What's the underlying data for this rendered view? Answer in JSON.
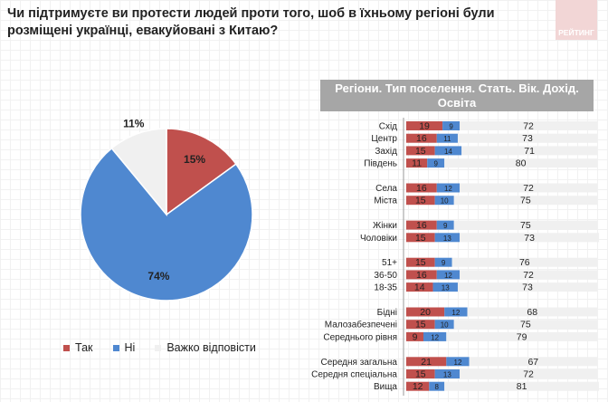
{
  "title": "Чи підтримуєте ви протести людей проти того, шоб в їхньому регіоні були розміщені українці, евакуйовані з Китаю?",
  "logo_text": "РЕЙТИНГ",
  "colors": {
    "yes": "#c0504d",
    "no": "#4f88d0",
    "hard": "#f0f0f0"
  },
  "chart_data": [
    {
      "type": "pie",
      "legend": [
        "Так",
        "Ні",
        "Важко відповісти"
      ],
      "values": [
        15,
        74,
        11
      ],
      "labels": [
        "15%",
        "74%",
        "11%"
      ],
      "legend_position": "bottom"
    },
    {
      "type": "bar",
      "stacked": true,
      "orientation": "horizontal",
      "title": "Регіони. Тип поселення. Стать. Вік. Дохід. Освіта",
      "series_names": [
        "Так",
        "Важко відповісти",
        "Ні"
      ],
      "groups": [
        [
          {
            "label": "Схід",
            "values": [
              19,
              9,
              72
            ]
          },
          {
            "label": "Центр",
            "values": [
              16,
              11,
              73
            ]
          },
          {
            "label": "Захід",
            "values": [
              15,
              14,
              71
            ]
          },
          {
            "label": "Південь",
            "values": [
              11,
              9,
              80
            ]
          }
        ],
        [
          {
            "label": "Села",
            "values": [
              16,
              12,
              72
            ]
          },
          {
            "label": "Міста",
            "values": [
              15,
              10,
              75
            ]
          }
        ],
        [
          {
            "label": "Жінки",
            "values": [
              16,
              9,
              75
            ]
          },
          {
            "label": "Чоловіки",
            "values": [
              15,
              13,
              73
            ]
          }
        ],
        [
          {
            "label": "51+",
            "values": [
              15,
              9,
              76
            ]
          },
          {
            "label": "36-50",
            "values": [
              16,
              12,
              72
            ]
          },
          {
            "label": "18-35",
            "values": [
              14,
              13,
              73
            ]
          }
        ],
        [
          {
            "label": "Бідні",
            "values": [
              20,
              12,
              68
            ]
          },
          {
            "label": "Малозабезпечені",
            "values": [
              15,
              10,
              75
            ]
          },
          {
            "label": "Середнього рівня",
            "values": [
              9,
              12,
              79
            ]
          }
        ],
        [
          {
            "label": "Середня загальна",
            "values": [
              21,
              12,
              67
            ]
          },
          {
            "label": "Середня спеціальна",
            "values": [
              15,
              13,
              72
            ]
          },
          {
            "label": "Вища",
            "values": [
              12,
              8,
              81
            ]
          }
        ]
      ]
    }
  ]
}
